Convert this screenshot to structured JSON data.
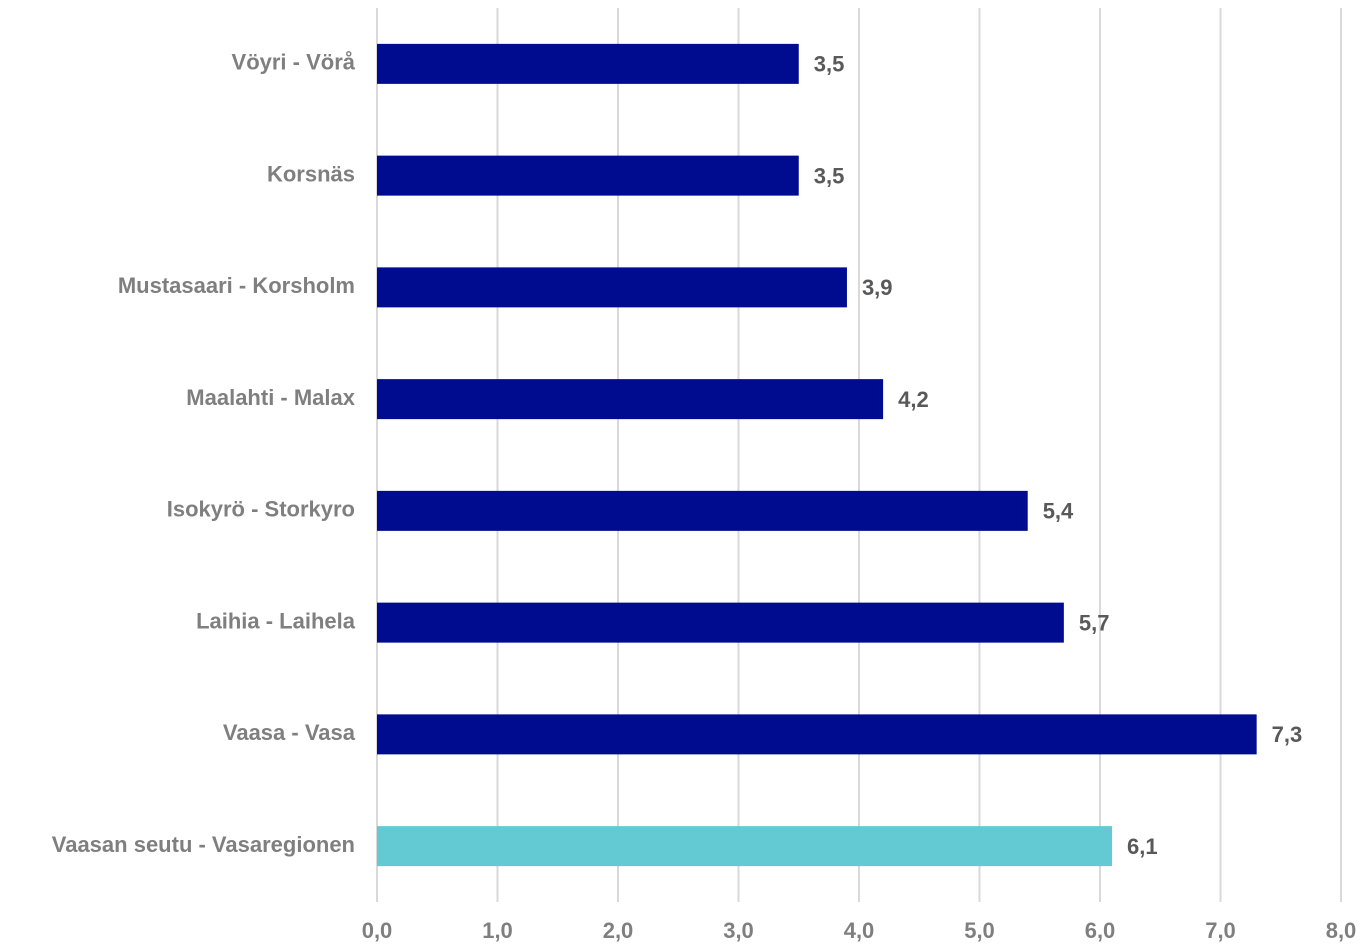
{
  "chart_data": {
    "type": "bar",
    "orientation": "horizontal",
    "categories": [
      "Vöyri - Vörå",
      "Korsnäs",
      "Mustasaari - Korsholm",
      "Maalahti - Malax",
      "Isokyrö - Storkyro",
      "Laihia - Laihela",
      "Vaasa - Vasa",
      "Vaasan seutu - Vasaregionen"
    ],
    "values": [
      3.5,
      3.5,
      3.9,
      4.2,
      5.4,
      5.7,
      7.3,
      6.1
    ],
    "value_labels": [
      "3,5",
      "3,5",
      "3,9",
      "4,2",
      "5,4",
      "5,7",
      "7,3",
      "6,1"
    ],
    "colors": [
      "#000c8f",
      "#000c8f",
      "#000c8f",
      "#000c8f",
      "#000c8f",
      "#000c8f",
      "#000c8f",
      "#63c9d3"
    ],
    "xlim": [
      0,
      8
    ],
    "xticks": [
      {
        "value": 0,
        "label": "0,0"
      },
      {
        "value": 1,
        "label": "1,0"
      },
      {
        "value": 2,
        "label": "2,0"
      },
      {
        "value": 3,
        "label": "3,0"
      },
      {
        "value": 4,
        "label": "4,0"
      },
      {
        "value": 5,
        "label": "5,0"
      },
      {
        "value": 6,
        "label": "6,0"
      },
      {
        "value": 7,
        "label": "7,0"
      },
      {
        "value": 8,
        "label": "8,0"
      }
    ],
    "grid": true
  }
}
